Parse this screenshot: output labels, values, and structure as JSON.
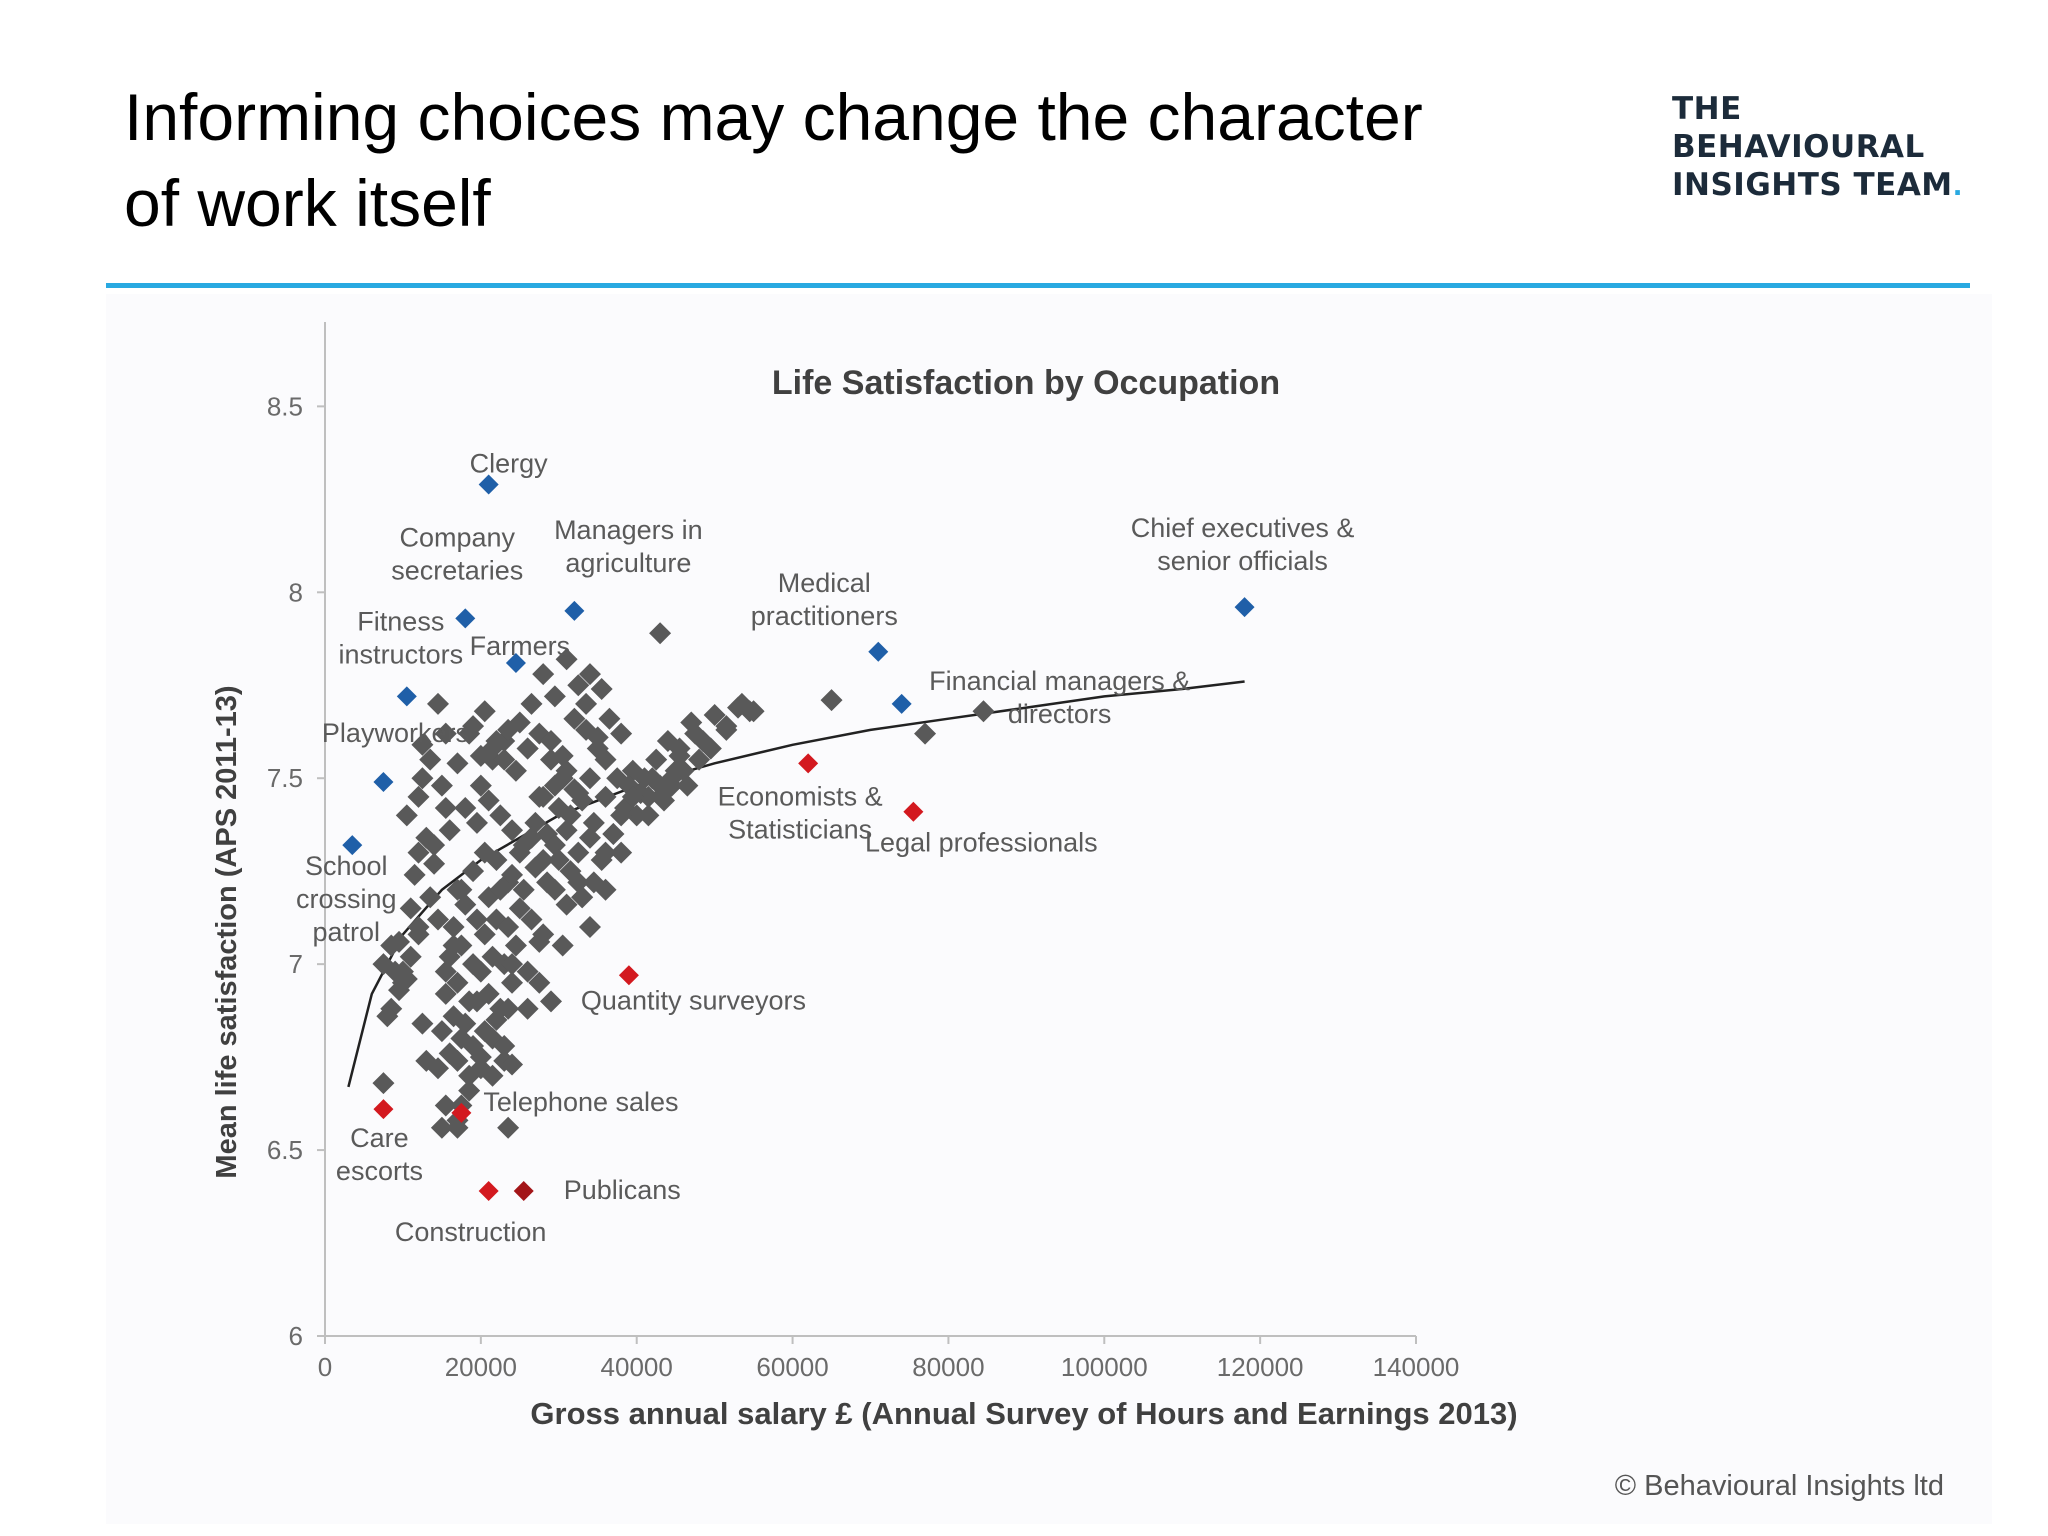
{
  "slide": {
    "title_line1": "Informing choices may change the character",
    "title_line2": "of work itself",
    "logo_line1": "THE",
    "logo_line2": "BEHAVIOURAL",
    "logo_line3": "INSIGHTS TEAM",
    "copyright": "© Behavioural Insights ltd"
  },
  "colors": {
    "accent_rule": "#29a9e1",
    "grey_point": "#595959",
    "blue_point": "#1f5fa8",
    "red_point": "#d3191f",
    "darkred_point": "#a31518",
    "trend_line": "#222222"
  },
  "chart_data": {
    "type": "scatter",
    "title": "Life Satisfaction by Occupation",
    "xlabel": "Gross annual salary £ (Annual Survey of Hours and Earnings 2013)",
    "ylabel": "Mean life satisfaction (APS 2011-13)",
    "xlim": [
      0,
      140000
    ],
    "ylim": [
      6,
      8.7
    ],
    "x_ticks": [
      "0",
      "20000",
      "40000",
      "60000",
      "80000",
      "100000",
      "120000",
      "140000"
    ],
    "y_ticks": [
      "6",
      "6.5",
      "7",
      "7.5",
      "8",
      "8.5"
    ],
    "grid": false,
    "trendline": {
      "type": "logarithmic",
      "x": [
        3000,
        6000,
        10000,
        15000,
        20000,
        30000,
        40000,
        50000,
        60000,
        70000,
        80000,
        90000,
        100000,
        110000,
        118000
      ],
      "y": [
        6.67,
        6.92,
        7.08,
        7.2,
        7.28,
        7.4,
        7.48,
        7.54,
        7.59,
        7.63,
        7.66,
        7.69,
        7.72,
        7.74,
        7.76
      ]
    },
    "series": [
      {
        "color": "blue",
        "points": [
          {
            "label": "Clergy",
            "x": 21000,
            "y": 8.29
          },
          {
            "label": "Company secretaries",
            "x": 18000,
            "y": 7.93
          },
          {
            "label": "Managers in agriculture",
            "x": 32000,
            "y": 7.95
          },
          {
            "label": "Farmers",
            "x": 24500,
            "y": 7.81
          },
          {
            "label": "Fitness instructors",
            "x": 10500,
            "y": 7.72
          },
          {
            "label": "Playworkers",
            "x": 7500,
            "y": 7.49
          },
          {
            "label": "School crossing patrol",
            "x": 3500,
            "y": 7.32
          },
          {
            "label": "Medical practitioners",
            "x": 71000,
            "y": 7.84
          },
          {
            "label": "Financial managers & directors",
            "x": 74000,
            "y": 7.7
          },
          {
            "label": "Chief executives & senior officials",
            "x": 118000,
            "y": 7.96
          }
        ]
      },
      {
        "color": "red",
        "points": [
          {
            "label": "Economists & Statisticians",
            "x": 62000,
            "y": 7.54
          },
          {
            "label": "Legal professionals",
            "x": 75500,
            "y": 7.41
          },
          {
            "label": "Quantity surveyors",
            "x": 39000,
            "y": 6.97
          },
          {
            "label": "Telephone sales",
            "x": 17500,
            "y": 6.6
          },
          {
            "label": "Care escorts",
            "x": 7500,
            "y": 6.61
          },
          {
            "label": "Construction",
            "x": 21000,
            "y": 6.39
          },
          {
            "label": "Publicans",
            "x": 25500,
            "y": 6.39
          }
        ]
      },
      {
        "color": "grey",
        "x": [
          7500,
          8500,
          9000,
          10000,
          11000,
          12000,
          12500,
          13000,
          11500,
          10500,
          12000,
          13000,
          14000,
          12500,
          13500,
          14500,
          15500,
          15000,
          16000,
          17000,
          16500,
          15500,
          14500,
          13500,
          12000,
          11000,
          10000,
          9500,
          8500,
          12500,
          14000,
          15500,
          17000,
          18500,
          20000,
          21500,
          23000,
          24500,
          26000,
          27500,
          29000,
          30500,
          32000,
          33500,
          35000,
          36500,
          38000,
          39500,
          41000,
          42500,
          44000,
          45500,
          47000,
          48500,
          50000,
          51500,
          53000,
          54500,
          18000,
          19500,
          21000,
          22500,
          24000,
          25500,
          27000,
          28500,
          30000,
          31500,
          33000,
          34500,
          36000,
          37500,
          39000,
          40500,
          42000,
          43500,
          45000,
          46500,
          48000,
          49500,
          17500,
          19000,
          20500,
          22000,
          23500,
          25000,
          26500,
          28000,
          29500,
          31000,
          32500,
          34000,
          35500,
          37000,
          38500,
          40000,
          41500,
          43000,
          44500,
          46000,
          16500,
          18000,
          19500,
          21000,
          22500,
          24000,
          25500,
          27000,
          28500,
          30000,
          31500,
          33000,
          34500,
          36000,
          16000,
          17500,
          19000,
          20500,
          22000,
          23500,
          25000,
          26500,
          28000,
          29500,
          31000,
          32500,
          15500,
          17000,
          18500,
          20000,
          21500,
          23000,
          24500,
          26000,
          27500,
          15000,
          16500,
          18000,
          19500,
          21000,
          22500,
          24000,
          14500,
          16000,
          17500,
          19000,
          20500,
          22000,
          23500,
          15500,
          17000,
          18500,
          20000,
          21500,
          23000,
          17000,
          18500,
          20000,
          21500,
          23000,
          20000,
          21500,
          23000,
          19000,
          20500,
          22000,
          23500,
          25000,
          26500,
          28000,
          29500,
          31000,
          32500,
          34000,
          35500,
          26000,
          27500,
          29000,
          30500,
          32000,
          33500,
          35000,
          28000,
          29500,
          31000,
          32500,
          34000,
          36000,
          38000,
          37000,
          39500,
          41500,
          43500,
          44500,
          45500,
          47500,
          49500,
          51500,
          53500,
          55000,
          43000,
          65000,
          77000,
          84500,
          38000,
          36000,
          34000,
          30500,
          29000,
          27500,
          24000,
          26000,
          33000,
          23500,
          17000,
          7500,
          8000,
          9500,
          10500,
          12000,
          15000,
          17500,
          24000
        ],
        "y": [
          7.0,
          6.88,
          6.98,
          6.95,
          7.02,
          7.1,
          6.84,
          6.74,
          7.24,
          7.4,
          7.45,
          7.34,
          7.27,
          7.59,
          7.55,
          7.7,
          7.62,
          7.48,
          7.36,
          7.2,
          7.05,
          6.98,
          7.12,
          7.18,
          7.3,
          7.15,
          6.98,
          6.93,
          7.05,
          7.5,
          7.32,
          7.42,
          7.54,
          7.62,
          7.48,
          7.55,
          7.6,
          7.52,
          7.58,
          7.45,
          7.55,
          7.5,
          7.47,
          7.63,
          7.58,
          7.66,
          7.62,
          7.52,
          7.5,
          7.55,
          7.6,
          7.58,
          7.65,
          7.6,
          7.67,
          7.63,
          7.69,
          7.68,
          7.42,
          7.38,
          7.44,
          7.4,
          7.36,
          7.32,
          7.38,
          7.35,
          7.42,
          7.4,
          7.44,
          7.38,
          7.45,
          7.5,
          7.48,
          7.46,
          7.5,
          7.44,
          7.52,
          7.48,
          7.55,
          7.58,
          7.2,
          7.25,
          7.3,
          7.28,
          7.22,
          7.3,
          7.34,
          7.28,
          7.32,
          7.36,
          7.3,
          7.34,
          7.28,
          7.35,
          7.42,
          7.4,
          7.45,
          7.48,
          7.5,
          7.52,
          7.1,
          7.16,
          7.12,
          7.18,
          7.2,
          7.24,
          7.2,
          7.26,
          7.22,
          7.28,
          7.25,
          7.18,
          7.22,
          7.3,
          7.02,
          7.05,
          7.0,
          7.08,
          7.12,
          7.1,
          7.15,
          7.12,
          7.08,
          7.2,
          7.16,
          7.22,
          6.92,
          6.95,
          6.9,
          6.98,
          7.02,
          7.0,
          7.05,
          6.98,
          7.06,
          6.82,
          6.86,
          6.84,
          6.9,
          6.92,
          6.88,
          6.95,
          6.72,
          6.76,
          6.8,
          6.78,
          6.82,
          6.85,
          6.88,
          6.62,
          6.74,
          6.7,
          6.75,
          6.8,
          6.78,
          6.58,
          6.66,
          6.72,
          6.7,
          6.74,
          7.56,
          7.58,
          7.55,
          7.64,
          7.68,
          7.6,
          7.63,
          7.65,
          7.7,
          7.78,
          7.72,
          7.82,
          7.75,
          7.78,
          7.74,
          7.58,
          7.62,
          7.6,
          7.56,
          7.66,
          7.7,
          7.61,
          7.45,
          7.48,
          7.52,
          7.46,
          7.5,
          7.55,
          7.4,
          7.35,
          7.45,
          7.4,
          7.46,
          7.48,
          7.56,
          7.62,
          7.58,
          7.64,
          7.7,
          7.68,
          7.89,
          7.71,
          7.62,
          7.68,
          7.3,
          7.2,
          7.1,
          7.05,
          6.9,
          6.95,
          7.0,
          6.88,
          7.18,
          6.56,
          6.56,
          6.68,
          6.86,
          7.06,
          6.96,
          7.08,
          6.56,
          6.62,
          6.73
        ]
      }
    ]
  }
}
